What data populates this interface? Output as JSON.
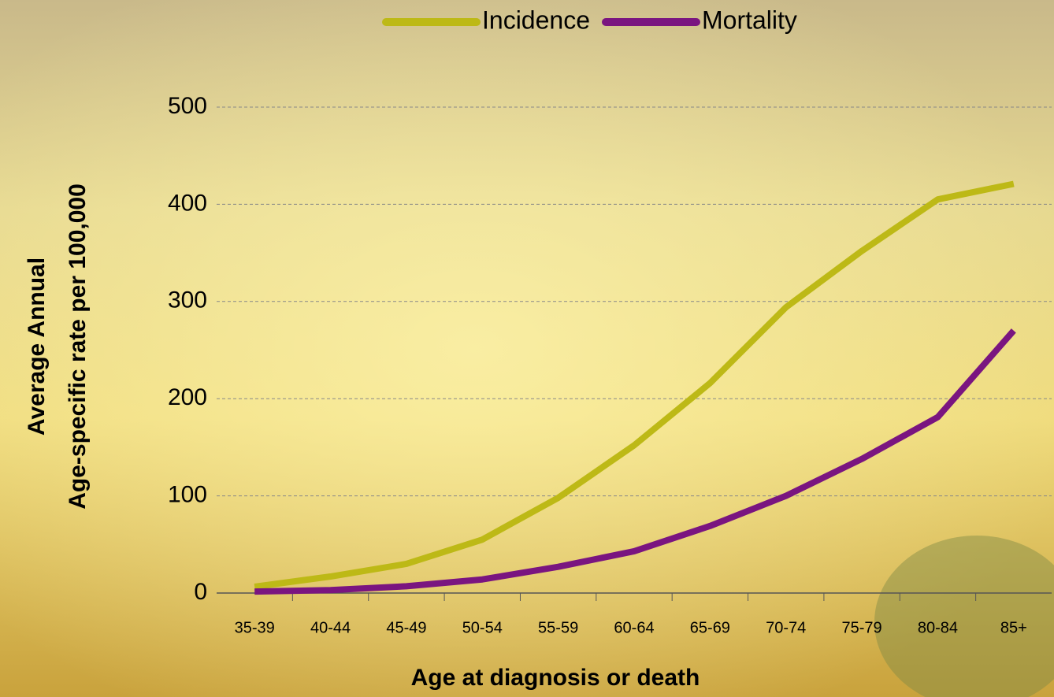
{
  "chart_data": {
    "type": "line",
    "xlabel": "Age at diagnosis or death",
    "ylabel": [
      "Average Annual",
      "Age-specific rate per 100,000"
    ],
    "categories": [
      "35-39",
      "40-44",
      "45-49",
      "50-54",
      "55-59",
      "60-64",
      "65-69",
      "70-74",
      "75-79",
      "80-84",
      "85+"
    ],
    "series": [
      {
        "name": "Incidence",
        "color": "#bdb916",
        "values": [
          6.5,
          17,
          30,
          55,
          98,
          152,
          216,
          294,
          352,
          405,
          421
        ]
      },
      {
        "name": "Mortality",
        "color": "#7a1580",
        "values": [
          1.5,
          3,
          7,
          14,
          27,
          43,
          69,
          100,
          138,
          181,
          270
        ]
      }
    ],
    "ylim": [
      0,
      500
    ],
    "yticks": [
      0,
      100,
      200,
      300,
      400,
      500
    ],
    "grid": true,
    "legend": "top"
  }
}
